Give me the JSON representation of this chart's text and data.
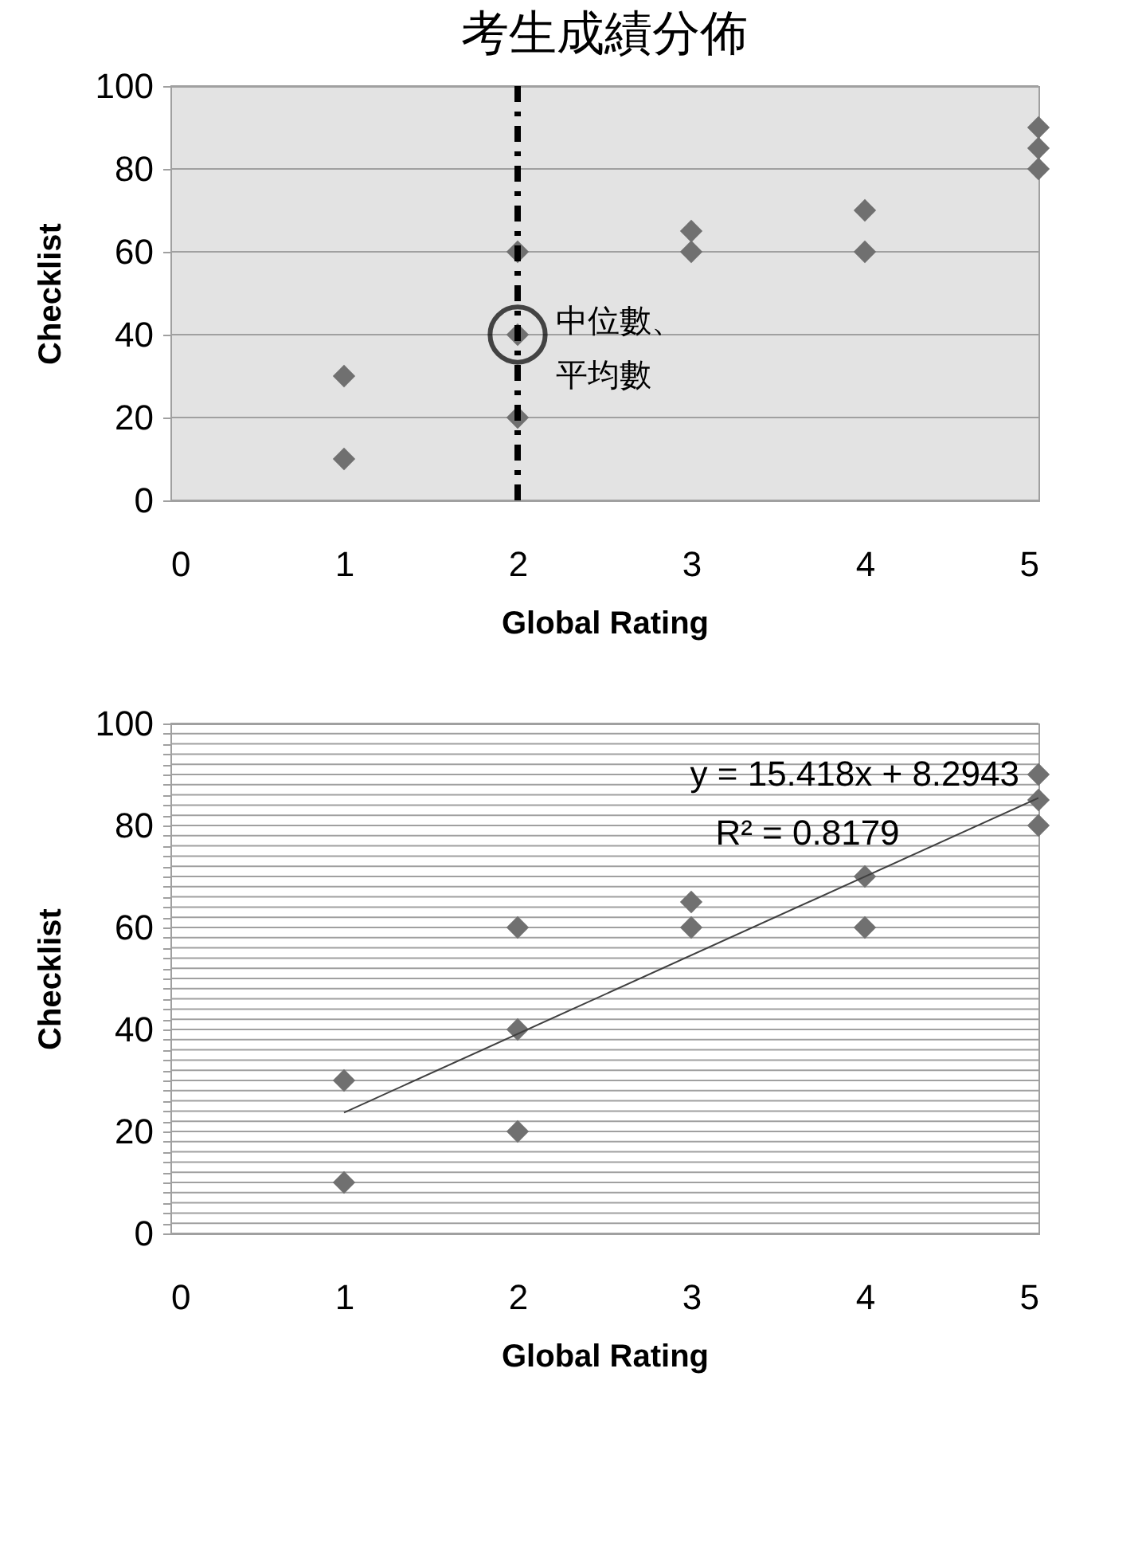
{
  "chart_data": [
    {
      "type": "scatter",
      "title": "考生成績分佈",
      "xlabel": "Global Rating",
      "ylabel": "Checklist",
      "marker": "diamond",
      "grid": "y",
      "xlim": [
        0,
        5
      ],
      "xticks": [
        0,
        1,
        2,
        3,
        4,
        5
      ],
      "ylim": [
        0,
        100
      ],
      "yticks": [
        0,
        20,
        40,
        60,
        80,
        100
      ],
      "series": [
        {
          "color": "#707070",
          "x": [
            1,
            1,
            2,
            2,
            2,
            3,
            3,
            4,
            4,
            5,
            5,
            5
          ],
          "values": [
            10,
            30,
            20,
            40,
            60,
            60,
            65,
            60,
            70,
            80,
            85,
            90
          ]
        }
      ],
      "ref_lines": [
        {
          "axis": "x",
          "value": 2,
          "color": "#000000",
          "line_style": "dashed"
        }
      ],
      "annotations": [
        {
          "text": "中位數、平均數",
          "x": 2,
          "y": 40
        }
      ]
    },
    {
      "type": "scatter",
      "xlabel": "Global Rating",
      "ylabel": "Checklist",
      "marker": "diamond",
      "grid": "y",
      "xlim": [
        0,
        5
      ],
      "xticks": [
        0,
        1,
        2,
        3,
        4,
        5
      ],
      "ylim": [
        0,
        100
      ],
      "yticks": [
        0,
        {
          "value": 2,
          "label": null
        },
        {
          "value": 4,
          "label": null
        },
        {
          "value": 6,
          "label": null
        },
        {
          "value": 8,
          "label": null
        },
        {
          "value": 10,
          "label": null
        },
        {
          "value": 12,
          "label": null
        },
        {
          "value": 14,
          "label": null
        },
        {
          "value": 16,
          "label": null
        },
        {
          "value": 18,
          "label": null
        },
        20,
        {
          "value": 22,
          "label": null
        },
        {
          "value": 24,
          "label": null
        },
        {
          "value": 26,
          "label": null
        },
        {
          "value": 28,
          "label": null
        },
        {
          "value": 30,
          "label": null
        },
        {
          "value": 32,
          "label": null
        },
        {
          "value": 34,
          "label": null
        },
        {
          "value": 36,
          "label": null
        },
        {
          "value": 38,
          "label": null
        },
        40,
        {
          "value": 42,
          "label": null
        },
        {
          "value": 44,
          "label": null
        },
        {
          "value": 46,
          "label": null
        },
        {
          "value": 48,
          "label": null
        },
        {
          "value": 50,
          "label": null
        },
        {
          "value": 52,
          "label": null
        },
        {
          "value": 54,
          "label": null
        },
        {
          "value": 56,
          "label": null
        },
        {
          "value": 58,
          "label": null
        },
        60,
        {
          "value": 62,
          "label": null
        },
        {
          "value": 64,
          "label": null
        },
        {
          "value": 66,
          "label": null
        },
        {
          "value": 68,
          "label": null
        },
        {
          "value": 70,
          "label": null
        },
        {
          "value": 72,
          "label": null
        },
        {
          "value": 74,
          "label": null
        },
        {
          "value": 76,
          "label": null
        },
        {
          "value": 78,
          "label": null
        },
        80,
        {
          "value": 82,
          "label": null
        },
        {
          "value": 84,
          "label": null
        },
        {
          "value": 86,
          "label": null
        },
        {
          "value": 88,
          "label": null
        },
        {
          "value": 90,
          "label": null
        },
        {
          "value": 92,
          "label": null
        },
        {
          "value": 94,
          "label": null
        },
        {
          "value": 96,
          "label": null
        },
        {
          "value": 98,
          "label": null
        },
        100
      ],
      "series": [
        {
          "color": "#707070",
          "x": [
            1,
            1,
            2,
            2,
            2,
            3,
            3,
            4,
            4,
            5,
            5,
            5
          ],
          "values": [
            10,
            30,
            20,
            40,
            60,
            60,
            65,
            60,
            70,
            80,
            85,
            90
          ]
        },
        {
          "type": "line",
          "marker": "none",
          "color": "#404040",
          "x": [
            1,
            5
          ],
          "values": [
            23.7,
            85.4
          ]
        }
      ],
      "annotations": [
        "y = 15.418x + 8.2943",
        "R² = 0.8179"
      ]
    }
  ]
}
